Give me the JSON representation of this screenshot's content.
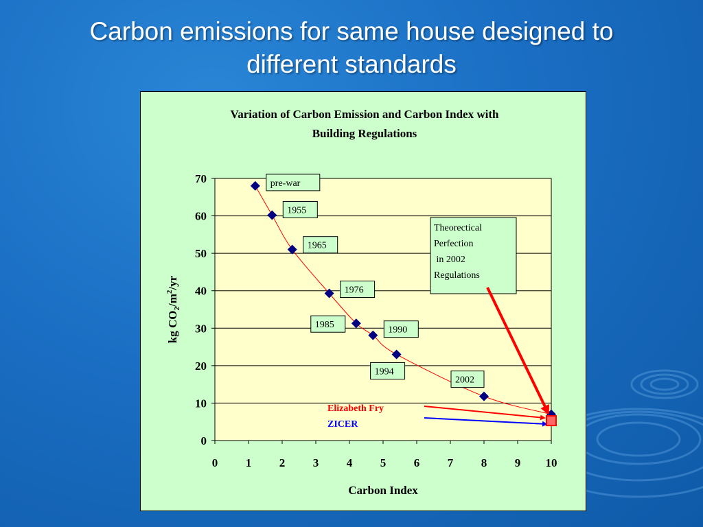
{
  "slide": {
    "title_line1": "Carbon emissions for same house designed to",
    "title_line2": "different standards"
  },
  "colors": {
    "background": "#1a6ec3",
    "chart_bg": "#ccffcc",
    "plot_bg": "#ffffcc",
    "marker": "#000080",
    "trendline": "#ff0000",
    "elizabeth_fry": "#ff0000",
    "zicer": "#0000ff"
  },
  "chart_data": {
    "type": "scatter",
    "title_line1": "Variation of Carbon Emission and Carbon Index with",
    "title_line2": "Building Regulations",
    "xlabel": "Carbon Index",
    "ylabel": "kg CO2/m2/yr",
    "xlim": [
      0,
      10
    ],
    "ylim": [
      0,
      70
    ],
    "xticks": [
      "0",
      "1",
      "2",
      "3",
      "4",
      "5",
      "6",
      "7",
      "8",
      "9",
      "10"
    ],
    "yticks": [
      "0",
      "10",
      "20",
      "30",
      "40",
      "50",
      "60",
      "70"
    ],
    "grid": "horizontal",
    "trendline": true,
    "points": [
      {
        "x": 1.2,
        "y": 68.0,
        "label": "pre-war"
      },
      {
        "x": 1.7,
        "y": 60.2,
        "label": "1955"
      },
      {
        "x": 2.3,
        "y": 51.0,
        "label": "1965"
      },
      {
        "x": 3.4,
        "y": 39.3,
        "label": "1976"
      },
      {
        "x": 4.2,
        "y": 31.3,
        "label": "1985"
      },
      {
        "x": 4.7,
        "y": 28.1,
        "label": "1990"
      },
      {
        "x": 5.4,
        "y": 23.0,
        "label": "1994"
      },
      {
        "x": 8.0,
        "y": 11.8,
        "label": "2002"
      },
      {
        "x": 10.0,
        "y": 7.0,
        "label": ""
      }
    ],
    "special_point": {
      "x": 10.0,
      "y": 5.3
    },
    "annotations": {
      "theoretical": [
        "Theorectical",
        "Perfection",
        " in 2002",
        "Regulations"
      ],
      "elizabeth_fry": "Elizabeth Fry",
      "zicer": "ZICER"
    }
  }
}
